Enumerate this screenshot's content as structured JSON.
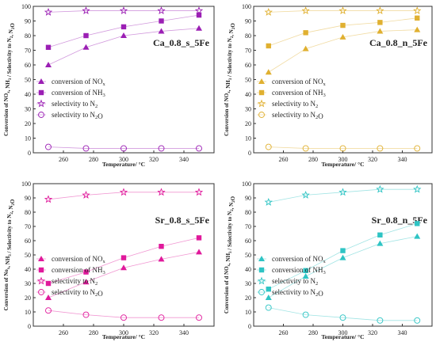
{
  "chart_data": [
    {
      "type": "line",
      "title": "Ca_0.8_s_5Fe",
      "xlabel": "Temperature/ °C",
      "ylabel": "Conversion of NOₓ, NH₃ / Selectivity to N₂, N₂O",
      "x": [
        250,
        275,
        300,
        325,
        350
      ],
      "xlim": [
        240,
        360
      ],
      "ylim": [
        0,
        100
      ],
      "xticks": [
        "260",
        "280",
        "300",
        "320",
        "340"
      ],
      "yticks": [
        "0",
        "10",
        "20",
        "30",
        "40",
        "50",
        "60",
        "70",
        "80",
        "90",
        "100"
      ],
      "color": "#9b1fb4",
      "legend_position": "center-left",
      "series": [
        {
          "name": "conversion of NOₓ",
          "marker": "triangle",
          "values": [
            60,
            72,
            80,
            83,
            85
          ]
        },
        {
          "name": "conversion of NH₃",
          "marker": "square",
          "values": [
            72,
            80,
            86,
            90,
            94
          ]
        },
        {
          "name": "selectivity to N₂",
          "marker": "star",
          "values": [
            96,
            97,
            97,
            97,
            97
          ]
        },
        {
          "name": "selectivity to N₂O",
          "marker": "circle",
          "values": [
            4,
            3,
            3,
            3,
            3
          ]
        }
      ]
    },
    {
      "type": "line",
      "title": "Ca_0.8_n_5Fe",
      "xlabel": "Temperature/ °C",
      "ylabel": "Conversion of NOₓ, NH₃ / Selectivity to N₂, N₂O",
      "x": [
        250,
        275,
        300,
        325,
        350
      ],
      "xlim": [
        240,
        360
      ],
      "ylim": [
        0,
        100
      ],
      "xticks": [
        "260",
        "280",
        "300",
        "320",
        "340"
      ],
      "yticks": [
        "0",
        "10",
        "20",
        "30",
        "40",
        "50",
        "60",
        "70",
        "80",
        "90",
        "100"
      ],
      "color": "#e0b030",
      "legend_position": "center-left",
      "series": [
        {
          "name": "conversion of NOₓ",
          "marker": "triangle",
          "values": [
            55,
            71,
            79,
            83,
            84
          ]
        },
        {
          "name": "conversion of NH₃",
          "marker": "square",
          "values": [
            73,
            82,
            87,
            89,
            92
          ]
        },
        {
          "name": "selectivity to N₂",
          "marker": "star",
          "values": [
            96,
            97,
            97,
            97,
            97
          ]
        },
        {
          "name": "selectivity to N₂O",
          "marker": "circle",
          "values": [
            4,
            3,
            3,
            3,
            3
          ]
        }
      ]
    },
    {
      "type": "line",
      "title": "Sr_0.8_s_5Fe",
      "xlabel": "Temperature/ °C",
      "ylabel": "Conversion of Noₓ, NH₃ / Selectivity to N₂, N₂O",
      "x": [
        250,
        275,
        300,
        325,
        350
      ],
      "xlim": [
        240,
        360
      ],
      "ylim": [
        0,
        100
      ],
      "xticks": [
        "260",
        "280",
        "300",
        "320",
        "340"
      ],
      "yticks": [
        "0",
        "10",
        "20",
        "30",
        "40",
        "50",
        "60",
        "70",
        "80",
        "90",
        "100"
      ],
      "color": "#e0199b",
      "legend_position": "center-left",
      "series": [
        {
          "name": "conversion of NOₓ",
          "marker": "triangle",
          "values": [
            20,
            31,
            41,
            47,
            52
          ]
        },
        {
          "name": "conversion of NH₃",
          "marker": "square",
          "values": [
            30,
            38,
            48,
            56,
            62
          ]
        },
        {
          "name": "selectivity to N₂",
          "marker": "star",
          "values": [
            89,
            92,
            94,
            94,
            94
          ]
        },
        {
          "name": "selectivity to N₂O",
          "marker": "circle",
          "values": [
            11,
            8,
            6,
            6,
            6
          ]
        }
      ]
    },
    {
      "type": "line",
      "title": "Sr_0.8_n_5Fe",
      "xlabel": "Temperature/ °C",
      "ylabel": "Conversion of d NOₓ, NH₃ / Selectivity to N₂, N₂O",
      "x": [
        250,
        275,
        300,
        325,
        350
      ],
      "xlim": [
        240,
        360
      ],
      "ylim": [
        0,
        100
      ],
      "xticks": [
        "260",
        "280",
        "300",
        "320",
        "340"
      ],
      "yticks": [
        "0",
        "10",
        "20",
        "30",
        "40",
        "50",
        "60",
        "70",
        "80",
        "90",
        "100"
      ],
      "color": "#2ec4c4",
      "legend_position": "center-left",
      "series": [
        {
          "name": "conversion of NOₓ",
          "marker": "triangle",
          "values": [
            20,
            35,
            48,
            58,
            63
          ]
        },
        {
          "name": "conversion of NH₃",
          "marker": "square",
          "values": [
            26,
            39,
            53,
            64,
            72
          ]
        },
        {
          "name": "selectivity to N₂",
          "marker": "star",
          "values": [
            87,
            92,
            94,
            96,
            96
          ]
        },
        {
          "name": "selectivity to N₂O",
          "marker": "circle",
          "values": [
            13,
            8,
            6,
            4,
            4
          ]
        }
      ]
    }
  ]
}
